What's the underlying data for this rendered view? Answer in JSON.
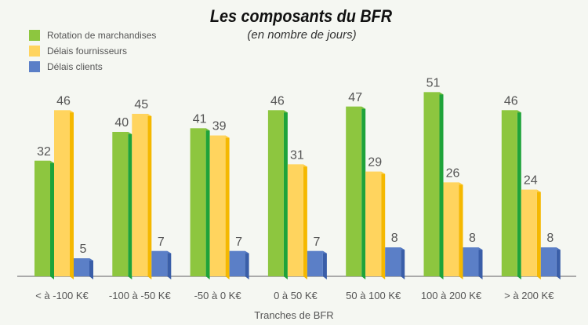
{
  "chart_data": {
    "type": "bar",
    "title": "Les composants du BFR",
    "subtitle": "(en nombre de jours)",
    "xlabel": "Tranches de BFR",
    "ylabel": "",
    "categories": [
      "< à -100 K€",
      "-100 à -50 K€",
      "-50 à 0 K€",
      "0 à 50 K€",
      "50 à 100 K€",
      "100 à 200 K€",
      "> à 200 K€"
    ],
    "series": [
      {
        "name": "Rotation de marchandises",
        "color": "#8dc63f",
        "values": [
          32,
          40,
          41,
          46,
          47,
          51,
          46
        ]
      },
      {
        "name": "Délais fournisseurs",
        "color": "#ffd45e",
        "values": [
          46,
          45,
          39,
          31,
          29,
          26,
          24
        ]
      },
      {
        "name": "Délais clients",
        "color": "#5b7fc7",
        "values": [
          5,
          7,
          7,
          7,
          8,
          8,
          8
        ]
      }
    ],
    "ylim": [
      0,
      55
    ],
    "grid": false,
    "legend": "top-left"
  }
}
